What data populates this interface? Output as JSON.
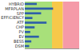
{
  "chart_data": {
    "type": "bar",
    "orientation": "horizontal",
    "categories": [
      "HYBRID",
      "MFRPLAN",
      "SPP",
      "EFFICIENCY",
      "ATF",
      "CHP",
      "PV",
      "EV",
      "BESS",
      "DSM"
    ],
    "values": [
      22,
      52,
      30,
      14,
      40,
      18,
      10,
      26,
      12,
      8
    ],
    "color": "#2e5fa8",
    "xlim": [
      0,
      100
    ],
    "xticks": [],
    "bands": [
      {
        "from": 0,
        "to": 50,
        "color": "#a8e07a"
      },
      {
        "from": 50,
        "to": 70,
        "color": "#f7c84a"
      },
      {
        "from": 70,
        "to": 100,
        "color": "#f59aa8"
      }
    ],
    "grid": false,
    "tick_labels": "y"
  }
}
